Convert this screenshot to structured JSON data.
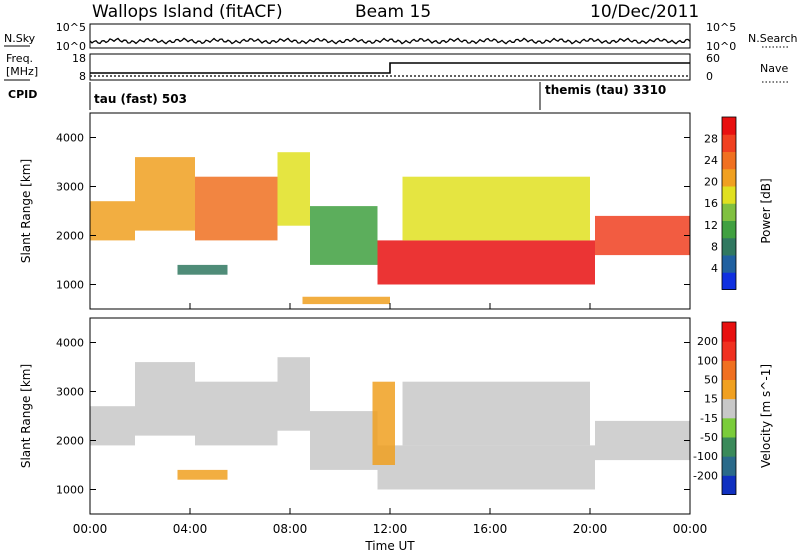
{
  "header": {
    "title": "Wallops Island (fitACF)",
    "beam": "Beam 15",
    "date": "10/Dec/2011"
  },
  "noise_panel": {
    "left_label": "N.Sky",
    "right_label": "N.Search",
    "left_ticks": [
      "10^5",
      "10^0"
    ],
    "right_ticks": [
      "10^5",
      "10^0"
    ]
  },
  "freq_panel": {
    "left_label_line1": "Freq.",
    "left_label_line2": "[MHz]",
    "right_label": "Nave",
    "left_ticks": [
      "18",
      "8"
    ],
    "right_ticks": [
      "60",
      "0"
    ],
    "cpid_label": "CPID",
    "cpid_entries": [
      "tau (fast) 503",
      "themis (tau) 3310"
    ]
  },
  "chart_data": [
    {
      "type": "heatmap",
      "panel": "power",
      "xlabel": "",
      "ylabel": "Slant Range [km]",
      "ylim": [
        500,
        4500
      ],
      "yticks": [
        "4000",
        "3000",
        "2000",
        "1000"
      ],
      "colorbar": {
        "label": "Power [dB]",
        "range": [
          0,
          32
        ],
        "ticks": [
          "28",
          "24",
          "20",
          "16",
          "12",
          "8",
          "4"
        ],
        "colors": [
          "#1030e0",
          "#2060a0",
          "#307860",
          "#40a040",
          "#80c040",
          "#e0e020",
          "#f0a020",
          "#f07020",
          "#f04020",
          "#e81010"
        ]
      },
      "bands": [
        {
          "start": 0.0,
          "end": 1.8,
          "low": 1900,
          "high": 2700,
          "value": 22
        },
        {
          "start": 1.8,
          "end": 4.2,
          "low": 2100,
          "high": 3600,
          "value": 20
        },
        {
          "start": 4.2,
          "end": 7.5,
          "low": 1900,
          "high": 3200,
          "value": 24
        },
        {
          "start": 7.5,
          "end": 8.8,
          "low": 2200,
          "high": 3700,
          "value": 18
        },
        {
          "start": 8.8,
          "end": 11.5,
          "low": 1400,
          "high": 2600,
          "value": 10
        },
        {
          "start": 11.5,
          "end": 20.2,
          "low": 1000,
          "high": 1900,
          "value": 30
        },
        {
          "start": 12.5,
          "end": 20.0,
          "low": 1900,
          "high": 3200,
          "value": 18
        },
        {
          "start": 20.2,
          "end": 24.0,
          "low": 1600,
          "high": 2400,
          "value": 26
        },
        {
          "start": 3.5,
          "end": 5.5,
          "low": 1200,
          "high": 1400,
          "value": 8
        },
        {
          "start": 8.5,
          "end": 12.0,
          "low": 600,
          "high": 750,
          "value": 20
        }
      ]
    },
    {
      "type": "heatmap",
      "panel": "velocity",
      "xlabel": "Time UT",
      "ylabel": "Slant Range [km]",
      "ylim": [
        500,
        4500
      ],
      "yticks": [
        "4000",
        "3000",
        "2000",
        "1000"
      ],
      "xlim": [
        "00:00",
        "24:00"
      ],
      "xticks": [
        "00:00",
        "04:00",
        "08:00",
        "12:00",
        "16:00",
        "20:00",
        "00:00"
      ],
      "colorbar": {
        "label": "Velocity [m s^-1]",
        "range": [
          -250,
          250
        ],
        "ticks": [
          "200",
          "100",
          "50",
          "15",
          "-15",
          "-50",
          "-100",
          "-200"
        ],
        "colors": [
          "#1030c0",
          "#2a6a8a",
          "#3a8a5a",
          "#7acc3a",
          "#c8c8c8",
          "#f0a020",
          "#f07020",
          "#f03020",
          "#e81010"
        ]
      },
      "bands": [
        {
          "start": 0.0,
          "end": 1.8,
          "low": 1900,
          "high": 2700,
          "value": 0
        },
        {
          "start": 1.8,
          "end": 4.2,
          "low": 2100,
          "high": 3600,
          "value": 0
        },
        {
          "start": 4.2,
          "end": 7.5,
          "low": 1900,
          "high": 3200,
          "value": 0
        },
        {
          "start": 7.5,
          "end": 8.8,
          "low": 2200,
          "high": 3700,
          "value": 0
        },
        {
          "start": 8.8,
          "end": 11.5,
          "low": 1400,
          "high": 2600,
          "value": 0
        },
        {
          "start": 11.5,
          "end": 20.2,
          "low": 1000,
          "high": 1900,
          "value": 0
        },
        {
          "start": 12.5,
          "end": 20.0,
          "low": 1900,
          "high": 3200,
          "value": 0
        },
        {
          "start": 20.2,
          "end": 24.0,
          "low": 1600,
          "high": 2400,
          "value": 0
        },
        {
          "start": 3.5,
          "end": 5.5,
          "low": 1200,
          "high": 1400,
          "value": 40
        },
        {
          "start": 11.3,
          "end": 12.2,
          "low": 1500,
          "high": 3200,
          "value": 40
        }
      ]
    }
  ]
}
